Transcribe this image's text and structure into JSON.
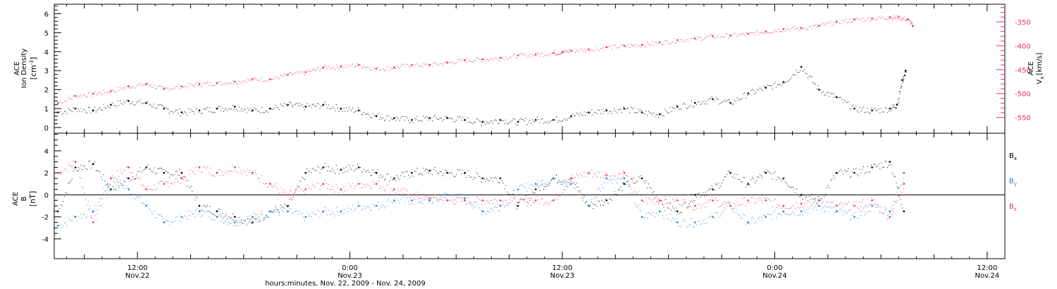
{
  "colors": {
    "axes": "#000000",
    "density": "#000000",
    "velocity": "#e8305f",
    "bx": "#000000",
    "by": "#1f7fd6",
    "bz": "#e8305f"
  },
  "time_axis": {
    "xlabel": "hours:minutes, Nov. 22, 2009 - Nov. 24, 2009",
    "start_hour": 7.3,
    "end_hour": 61.0,
    "ticks": [
      {
        "hour": 12,
        "time": "12:00",
        "date": "Nov.22"
      },
      {
        "hour": 24,
        "time": "0:00",
        "date": "Nov.23"
      },
      {
        "hour": 36,
        "time": "12:00",
        "date": "Nov.23"
      },
      {
        "hour": 48,
        "time": "0:00",
        "date": "Nov.24"
      },
      {
        "hour": 60,
        "time": "12:00",
        "date": "Nov.24"
      }
    ]
  },
  "top_panel": {
    "ylabel_line1": "ACE",
    "ylabel_line2": "Ion Density",
    "ylabel_unit_base": "[cm",
    "ylabel_unit_sup": "-3",
    "ylabel_unit_end": "]",
    "ylim": [
      -0.3,
      6.5
    ],
    "yticks": [
      "0",
      "1",
      "2",
      "3",
      "4",
      "5",
      "6"
    ],
    "right_ylabel_line1": "ACE",
    "right_ylabel_line2": "V",
    "right_ylabel_sub": "x",
    "right_ylabel_unit": "[km/s]",
    "right_ylim": [
      -583,
      -313
    ],
    "right_yticks": [
      "-550",
      "-500",
      "-450",
      "-400",
      "-350"
    ]
  },
  "bottom_panel": {
    "ylabel_line1": "ACE",
    "ylabel_line2": "B",
    "ylabel_unit": "[nT]",
    "ylim": [
      -5.8,
      5.6
    ],
    "yticks": [
      "-4",
      "-2",
      "0",
      "2",
      "4"
    ],
    "legend": [
      {
        "name": "B",
        "sub": "x",
        "color_key": "bx"
      },
      {
        "name": "B",
        "sub": "y",
        "color_key": "by"
      },
      {
        "name": "B",
        "sub": "z",
        "color_key": "bz"
      }
    ]
  },
  "chart_data": [
    {
      "type": "scatter",
      "x_unit": "hours since Nov. 22 00:00",
      "series": [
        {
          "name": "Ion Density",
          "axis": "left",
          "color_key": "density",
          "x": [
            7.5,
            8.5,
            9.5,
            10.5,
            11.5,
            12.5,
            13.5,
            14.5,
            15.5,
            16.5,
            17.5,
            18.5,
            19.5,
            20.5,
            21.5,
            22.5,
            23.5,
            24.5,
            25.5,
            26.5,
            27.5,
            28.5,
            29.5,
            30.5,
            31.5,
            32.5,
            33.5,
            34.5,
            35.5,
            36.5,
            37.5,
            38.5,
            39.5,
            40.5,
            41.5,
            42.5,
            43.5,
            44.5,
            45.5,
            46.5,
            47.5,
            48.5,
            49.5,
            50.5,
            51.5,
            52.5,
            53.5,
            54.5,
            54.9,
            55.2,
            55.4
          ],
          "y": [
            0.8,
            1.0,
            0.9,
            1.2,
            1.4,
            1.3,
            1.0,
            0.8,
            0.9,
            1.0,
            1.1,
            0.9,
            1.0,
            1.2,
            1.1,
            1.2,
            1.0,
            0.9,
            0.6,
            0.5,
            0.4,
            0.5,
            0.5,
            0.4,
            0.3,
            0.4,
            0.3,
            0.4,
            0.4,
            0.6,
            0.8,
            0.9,
            1.0,
            0.8,
            0.7,
            1.1,
            1.3,
            1.5,
            1.3,
            1.8,
            2.1,
            2.4,
            3.2,
            2.0,
            1.6,
            1.0,
            0.9,
            1.0,
            1.2,
            2.5,
            3.0
          ]
        },
        {
          "name": "Vx",
          "axis": "right",
          "unit": "km/s",
          "color_key": "velocity",
          "x": [
            7.5,
            8.5,
            9.5,
            10.5,
            11.5,
            12.5,
            13.5,
            14.5,
            15.5,
            16.5,
            17.5,
            18.5,
            19.5,
            20.5,
            21.5,
            22.5,
            23.5,
            24.5,
            25.5,
            26.5,
            27.5,
            28.5,
            29.5,
            30.5,
            31.5,
            32.5,
            33.5,
            34.5,
            35.5,
            36.0,
            36.5,
            37.5,
            38.5,
            39.5,
            40.5,
            41.5,
            42.5,
            43.5,
            44.5,
            45.5,
            46.5,
            47.5,
            48.5,
            49.5,
            50.5,
            51.5,
            52.5,
            53.5,
            54.5,
            55.0,
            55.5,
            55.8
          ],
          "y": [
            -520,
            -505,
            -500,
            -495,
            -485,
            -480,
            -490,
            -485,
            -480,
            -478,
            -475,
            -470,
            -470,
            -460,
            -455,
            -445,
            -443,
            -440,
            -448,
            -445,
            -440,
            -440,
            -435,
            -430,
            -428,
            -425,
            -420,
            -418,
            -415,
            -413,
            -410,
            -408,
            -403,
            -400,
            -398,
            -393,
            -388,
            -385,
            -380,
            -378,
            -375,
            -370,
            -365,
            -363,
            -358,
            -350,
            -345,
            -343,
            -340,
            -340,
            -345,
            -358
          ]
        }
      ]
    },
    {
      "type": "scatter",
      "x_unit": "hours since Nov. 22 00:00",
      "unit": "nT",
      "series": [
        {
          "name": "Bx",
          "color_key": "bx",
          "x": [
            7.5,
            8.5,
            9.5,
            10.5,
            11.5,
            12.5,
            13.5,
            14.5,
            15.5,
            16.5,
            17.5,
            18.5,
            19.5,
            20.5,
            21.5,
            22.5,
            23.5,
            24.5,
            25.5,
            26.5,
            27.5,
            28.5,
            29.5,
            30.5,
            31.5,
            32.5,
            33.5,
            34.5,
            35.5,
            36.5,
            37.5,
            38.5,
            39.5,
            40.5,
            41.5,
            42.5,
            43.5,
            44.5,
            45.5,
            46.5,
            47.5,
            48.5,
            49.5,
            50.5,
            51.5,
            52.5,
            53.5,
            54.5,
            55.3
          ],
          "y": [
            -1.5,
            2.5,
            2.8,
            0.5,
            1.5,
            2.5,
            2.0,
            2.0,
            -1.0,
            -1.5,
            -2.0,
            -2.5,
            -1.5,
            -1.0,
            2.0,
            2.5,
            2.3,
            2.5,
            2.0,
            1.5,
            2.0,
            2.2,
            2.0,
            2.0,
            1.5,
            1.5,
            -1.0,
            0.5,
            1.5,
            1.5,
            -1.0,
            -0.5,
            1.0,
            1.5,
            -0.5,
            -1.5,
            0.0,
            0.5,
            2.0,
            1.0,
            2.0,
            1.5,
            0.0,
            -0.5,
            2.0,
            2.0,
            2.5,
            3.0,
            -1.5
          ]
        },
        {
          "name": "By",
          "color_key": "by",
          "x": [
            7.5,
            8.5,
            9.5,
            10.5,
            11.5,
            12.5,
            13.5,
            14.5,
            15.5,
            16.5,
            17.5,
            18.5,
            19.5,
            20.5,
            21.5,
            22.5,
            23.5,
            24.5,
            25.5,
            26.5,
            27.5,
            28.5,
            29.5,
            30.5,
            31.5,
            32.5,
            33.5,
            34.5,
            35.5,
            36.5,
            37.5,
            38.5,
            39.5,
            40.5,
            41.5,
            42.5,
            43.5,
            44.5,
            45.5,
            46.5,
            47.5,
            48.5,
            49.5,
            50.5,
            51.5,
            52.5,
            53.5,
            54.5,
            55.3
          ],
          "y": [
            -2.8,
            -2.0,
            -1.5,
            1.5,
            0.5,
            -1.0,
            -2.5,
            -2.0,
            -1.5,
            -2.0,
            -2.5,
            -2.0,
            -1.5,
            -1.5,
            -2.0,
            -1.5,
            -1.5,
            -1.0,
            -1.0,
            -0.5,
            -0.5,
            -0.5,
            0.0,
            -0.3,
            -1.5,
            -1.0,
            0.5,
            1.0,
            1.5,
            1.0,
            -1.0,
            1.5,
            1.5,
            -2.0,
            -1.5,
            -2.5,
            -2.5,
            -2.0,
            -1.0,
            -2.5,
            -2.0,
            -1.5,
            -1.5,
            -1.0,
            -1.5,
            -2.0,
            -1.0,
            -1.5,
            2.0
          ]
        },
        {
          "name": "Bz",
          "color_key": "bz",
          "x": [
            7.5,
            8.5,
            9.5,
            10.5,
            11.5,
            12.5,
            13.5,
            14.5,
            15.5,
            16.5,
            17.5,
            18.5,
            19.5,
            20.5,
            21.5,
            22.5,
            23.5,
            24.5,
            25.5,
            26.5,
            27.5,
            28.5,
            29.5,
            30.5,
            31.5,
            32.5,
            33.5,
            34.5,
            35.5,
            36.5,
            37.5,
            38.5,
            39.5,
            40.5,
            41.5,
            42.5,
            43.5,
            44.5,
            45.5,
            46.5,
            47.5,
            48.5,
            49.5,
            50.5,
            51.5,
            52.5,
            53.5,
            54.5,
            55.3
          ],
          "y": [
            2.0,
            3.0,
            -2.5,
            1.5,
            2.5,
            0.5,
            1.0,
            1.5,
            2.5,
            2.0,
            2.5,
            2.0,
            1.0,
            0.0,
            0.5,
            1.0,
            0.5,
            1.0,
            1.0,
            0.5,
            0.0,
            -0.3,
            -0.5,
            -0.5,
            -0.5,
            -0.5,
            -0.7,
            -0.5,
            -0.5,
            1.5,
            2.0,
            1.8,
            2.0,
            -0.5,
            -0.5,
            -0.5,
            -1.0,
            -0.5,
            -1.0,
            -0.5,
            -0.5,
            -1.0,
            -0.8,
            -0.5,
            -1.0,
            -1.0,
            -0.5,
            -2.0,
            1.0
          ]
        }
      ]
    }
  ]
}
